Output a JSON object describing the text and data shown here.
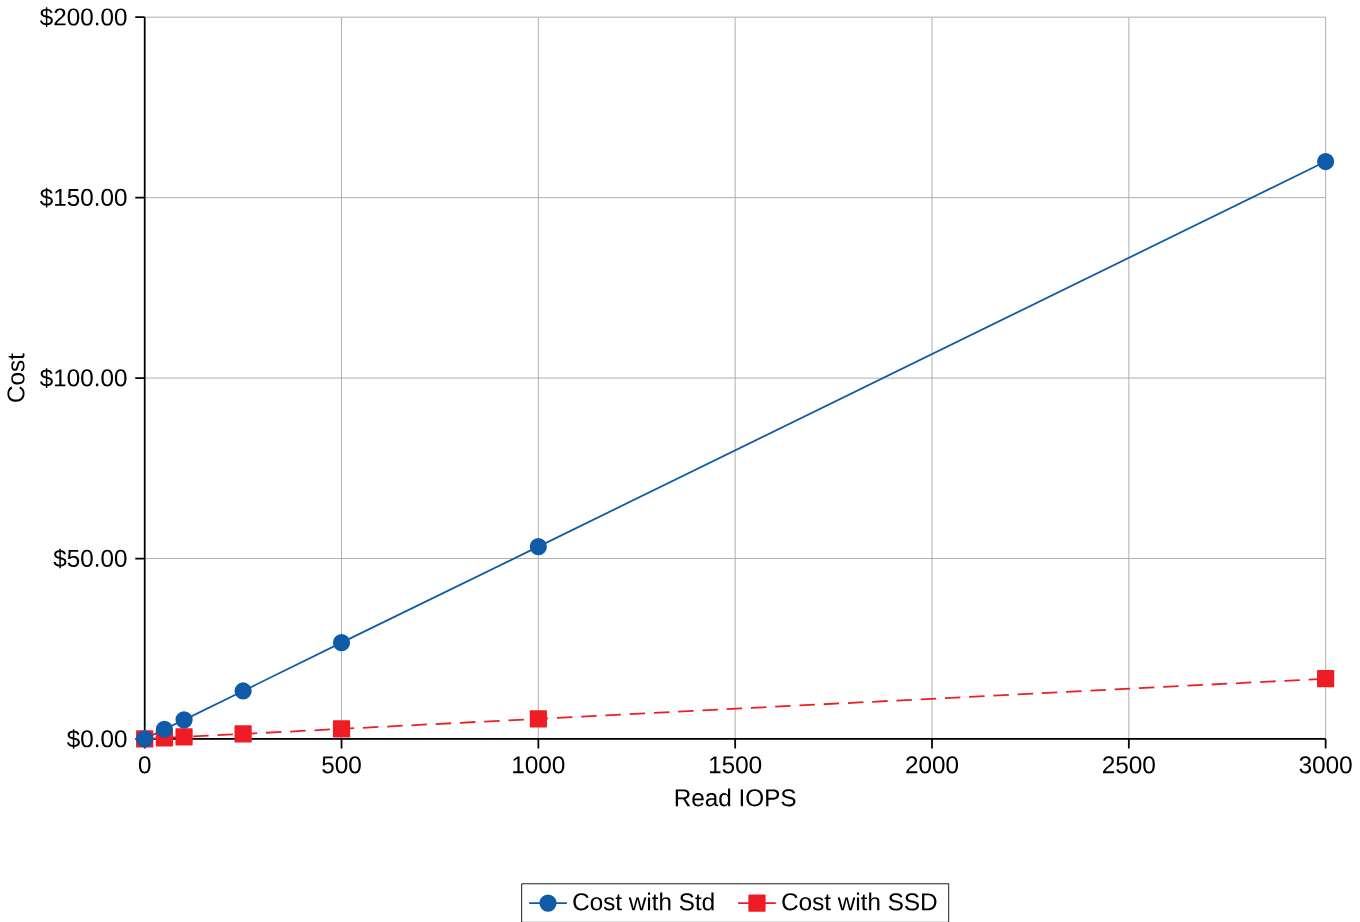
{
  "chart_data": {
    "type": "line",
    "xlabel": "Read IOPS",
    "ylabel": "Cost",
    "x": [
      0,
      50,
      100,
      250,
      500,
      1000,
      3000
    ],
    "series": [
      {
        "name": "Cost with Std",
        "color": "#0f5ba7",
        "values": [
          0,
          2.7,
          5.3,
          13.3,
          26.7,
          53.3,
          160
        ],
        "marker": "circle",
        "line_style": "solid"
      },
      {
        "name": "Cost with SSD",
        "color": "#ee1c25",
        "values": [
          0,
          0.3,
          0.6,
          1.4,
          2.8,
          5.6,
          16.7
        ],
        "marker": "square",
        "line_style": "dashed"
      }
    ],
    "xlim": [
      0,
      3000
    ],
    "ylim": [
      0,
      200
    ],
    "xticks": [
      0,
      500,
      1000,
      1500,
      2000,
      2500,
      3000
    ],
    "yticks": [
      {
        "value": 0,
        "label": "$0.00"
      },
      {
        "value": 50,
        "label": "$50.00"
      },
      {
        "value": 100,
        "label": "$100.00"
      },
      {
        "value": 150,
        "label": "$150.00"
      },
      {
        "value": 200,
        "label": "$200.00"
      }
    ],
    "grid": true,
    "legend": "bottom"
  }
}
